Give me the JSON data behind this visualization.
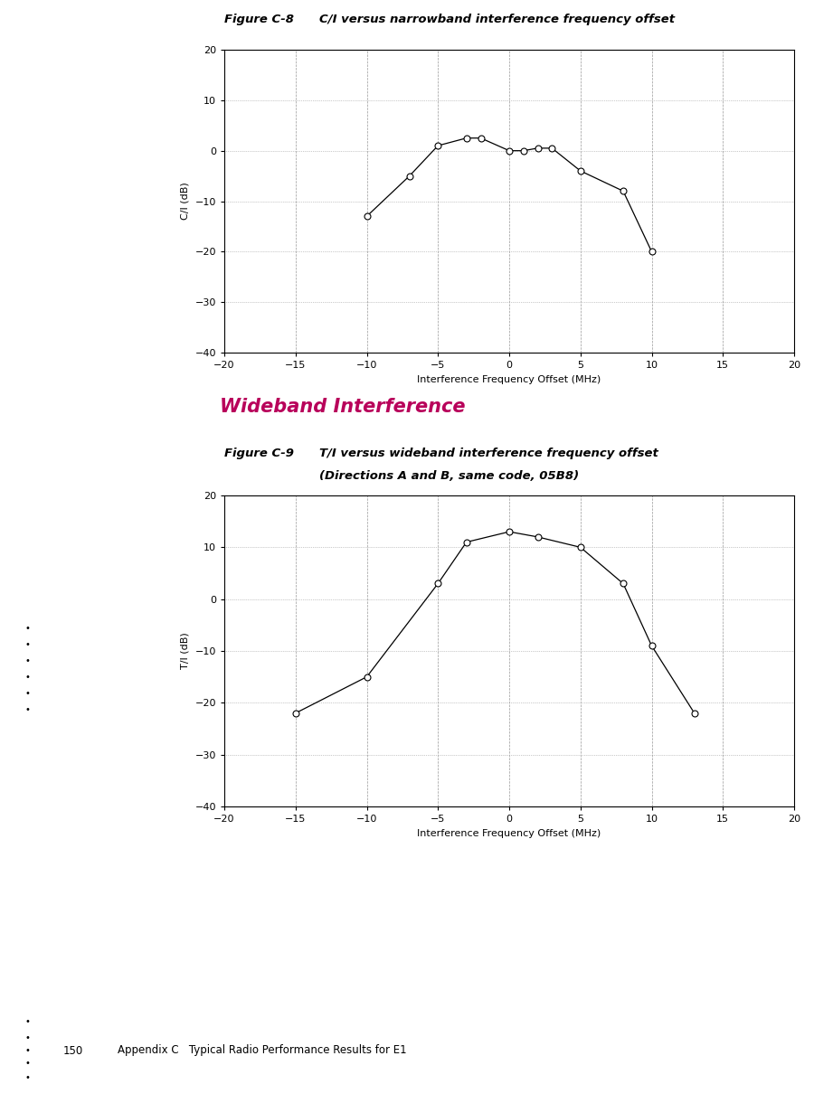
{
  "fig8_title_label": "Figure C-8",
  "fig8_title_desc": "C/I versus narrowband interference frequency offset",
  "fig8_xlabel": "Interference Frequency Offset (MHz)",
  "fig8_ylabel": "C/I (dB)",
  "fig8_xlim": [
    -20,
    20
  ],
  "fig8_ylim": [
    -40,
    20
  ],
  "fig8_xticks": [
    -20,
    -15,
    -10,
    -5,
    0,
    5,
    10,
    15,
    20
  ],
  "fig8_yticks": [
    -40,
    -30,
    -20,
    -10,
    0,
    10,
    20
  ],
  "fig8_x": [
    -10,
    -7,
    -5,
    -3,
    -2,
    0,
    1,
    2,
    3,
    5,
    8,
    10
  ],
  "fig8_y": [
    -13,
    -5,
    1,
    2.5,
    2.5,
    0,
    0,
    0.5,
    0.5,
    -4,
    -8,
    -20
  ],
  "fig9_title_label": "Figure C-9",
  "fig9_title_desc_line1": "T/I versus wideband interference frequency offset",
  "fig9_title_desc_line2": "(Directions A and B, same code, 05B8)",
  "fig9_xlabel": "Interference Frequency Offset (MHz)",
  "fig9_ylabel": "T/I (dB)",
  "fig9_xlim": [
    -20,
    20
  ],
  "fig9_ylim": [
    -40,
    20
  ],
  "fig9_xticks": [
    -20,
    -15,
    -10,
    -5,
    0,
    5,
    10,
    15,
    20
  ],
  "fig9_yticks": [
    -40,
    -30,
    -20,
    -10,
    0,
    10,
    20
  ],
  "fig9_x": [
    -15,
    -10,
    -5,
    -3,
    0,
    2,
    5,
    8,
    10,
    13
  ],
  "fig9_y": [
    -22,
    -15,
    3,
    11,
    13,
    12,
    10,
    3,
    -9,
    -22
  ],
  "section_title": "Wideband Interference",
  "section_title_color": "#B8005A",
  "line_color": "#000000",
  "marker_style": "o",
  "marker_facecolor": "white",
  "marker_edgecolor": "#000000",
  "marker_size": 5,
  "grid_dash_color": "#999999",
  "grid_dot_color": "#999999",
  "page_number": "150",
  "page_footer": "Appendix C   Typical Radio Performance Results for E1",
  "fig_title_fontsize": 9.5,
  "axis_label_fontsize": 8,
  "tick_fontsize": 8,
  "section_title_fontsize": 15,
  "footer_fontsize": 8.5
}
